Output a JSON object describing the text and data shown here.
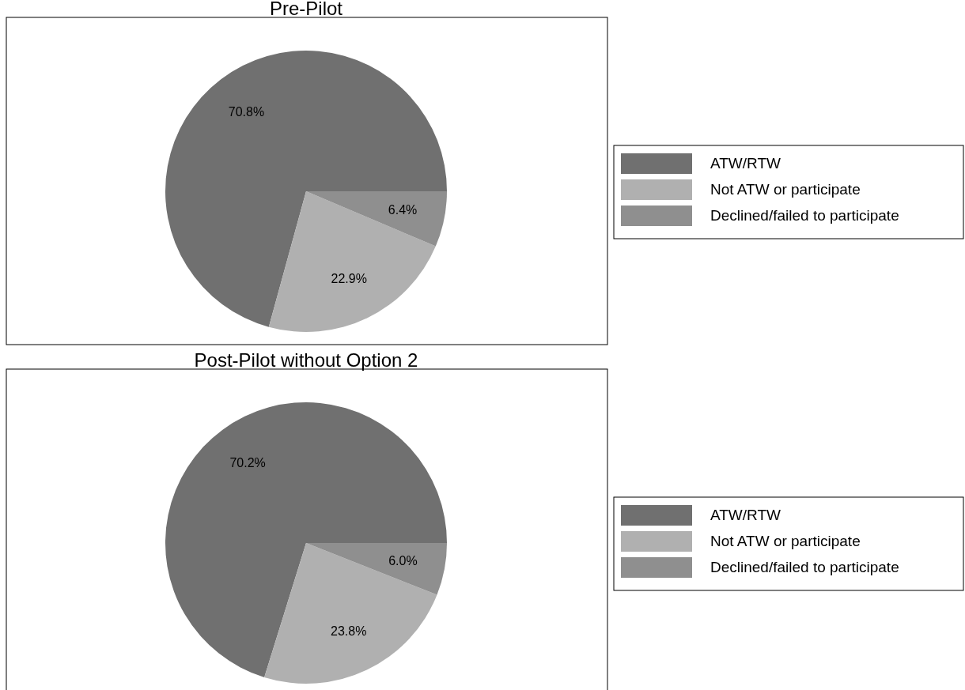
{
  "chart_data": [
    {
      "type": "pie",
      "title": "Pre-Pilot",
      "categories": [
        "ATW/RTW",
        "Not ATW or participate",
        "Declined/failed to participate"
      ],
      "values": [
        70.8,
        22.9,
        6.4
      ],
      "colors": [
        "#707070",
        "#b0b0b0",
        "#8f8f8f"
      ],
      "value_labels": [
        "70.8%",
        "22.9%",
        "6.4%"
      ],
      "legend": "right"
    },
    {
      "type": "pie",
      "title": "Post-Pilot without Option 2",
      "categories": [
        "ATW/RTW",
        "Not ATW or participate",
        "Declined/failed to participate"
      ],
      "values": [
        70.2,
        23.8,
        6.0
      ],
      "colors": [
        "#707070",
        "#b0b0b0",
        "#8f8f8f"
      ],
      "value_labels": [
        "70.2%",
        "23.8%",
        "6.0%"
      ],
      "legend": "right"
    }
  ]
}
